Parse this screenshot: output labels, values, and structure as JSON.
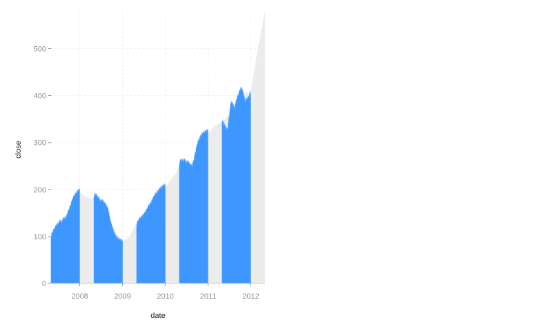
{
  "chart_data": {
    "type": "area",
    "xlabel": "date",
    "ylabel": "close",
    "x_range": [
      "2007-05-01",
      "2012-05-01"
    ],
    "ylim": [
      0,
      580
    ],
    "x_ticks": [
      "2008",
      "2009",
      "2010",
      "2011",
      "2012"
    ],
    "y_ticks": [
      0,
      100,
      200,
      300,
      400,
      500
    ],
    "grid": true,
    "colors": {
      "highlight": "#3d97fe",
      "background_area": "#ececec",
      "grid": "#eeeeee",
      "tick_text": "#8c8c8c"
    },
    "background_area": {
      "description": "full series, drawn in grey",
      "points": [
        [
          "2007-05-01",
          100
        ],
        [
          "2007-07-01",
          120
        ],
        [
          "2007-09-01",
          140
        ],
        [
          "2007-11-01",
          180
        ],
        [
          "2007-12-20",
          198
        ],
        [
          "2008-02-01",
          188
        ],
        [
          "2008-04-01",
          180
        ],
        [
          "2008-06-01",
          185
        ],
        [
          "2008-08-01",
          170
        ],
        [
          "2008-10-01",
          130
        ],
        [
          "2008-12-01",
          95
        ],
        [
          "2009-01-01",
          88
        ],
        [
          "2009-03-01",
          100
        ],
        [
          "2009-05-01",
          130
        ],
        [
          "2009-08-01",
          155
        ],
        [
          "2009-10-01",
          190
        ],
        [
          "2010-01-01",
          205
        ],
        [
          "2010-04-01",
          235
        ],
        [
          "2010-06-01",
          268
        ],
        [
          "2010-09-01",
          250
        ],
        [
          "2010-11-01",
          300
        ],
        [
          "2011-01-01",
          320
        ],
        [
          "2011-03-01",
          335
        ],
        [
          "2011-06-01",
          350
        ],
        [
          "2011-08-01",
          380
        ],
        [
          "2011-10-01",
          400
        ],
        [
          "2012-01-01",
          410
        ],
        [
          "2012-03-01",
          500
        ],
        [
          "2012-05-01",
          580
        ]
      ]
    },
    "series": [
      {
        "color": "#3d97fe",
        "segments": [
          {
            "start": "2007-05-01",
            "end": "2007-12-31",
            "points": [
              [
                "2007-05-01",
                100
              ],
              [
                "2007-05-15",
                108
              ],
              [
                "2007-06-01",
                115
              ],
              [
                "2007-06-15",
                122
              ],
              [
                "2007-07-01",
                125
              ],
              [
                "2007-07-15",
                132
              ],
              [
                "2007-08-01",
                128
              ],
              [
                "2007-08-15",
                138
              ],
              [
                "2007-09-01",
                135
              ],
              [
                "2007-09-15",
                145
              ],
              [
                "2007-10-01",
                155
              ],
              [
                "2007-10-15",
                165
              ],
              [
                "2007-11-01",
                178
              ],
              [
                "2007-11-15",
                185
              ],
              [
                "2007-12-01",
                190
              ],
              [
                "2007-12-15",
                195
              ],
              [
                "2007-12-31",
                198
              ]
            ]
          },
          {
            "start": "2008-05-01",
            "end": "2008-12-31",
            "points": [
              [
                "2008-05-01",
                185
              ],
              [
                "2008-05-15",
                188
              ],
              [
                "2008-06-01",
                183
              ],
              [
                "2008-06-15",
                178
              ],
              [
                "2008-07-01",
                172
              ],
              [
                "2008-07-15",
                175
              ],
              [
                "2008-08-01",
                168
              ],
              [
                "2008-08-15",
                165
              ],
              [
                "2008-09-01",
                155
              ],
              [
                "2008-09-15",
                135
              ],
              [
                "2008-10-01",
                120
              ],
              [
                "2008-10-15",
                110
              ],
              [
                "2008-11-01",
                100
              ],
              [
                "2008-11-15",
                95
              ],
              [
                "2008-12-01",
                92
              ],
              [
                "2008-12-15",
                90
              ],
              [
                "2008-12-31",
                88
              ]
            ]
          },
          {
            "start": "2009-05-01",
            "end": "2009-12-31",
            "points": [
              [
                "2009-05-01",
                125
              ],
              [
                "2009-05-15",
                132
              ],
              [
                "2009-06-01",
                138
              ],
              [
                "2009-06-15",
                140
              ],
              [
                "2009-07-01",
                145
              ],
              [
                "2009-07-15",
                150
              ],
              [
                "2009-08-01",
                158
              ],
              [
                "2009-08-15",
                165
              ],
              [
                "2009-09-01",
                170
              ],
              [
                "2009-09-15",
                178
              ],
              [
                "2009-10-01",
                185
              ],
              [
                "2009-10-15",
                190
              ],
              [
                "2009-11-01",
                195
              ],
              [
                "2009-11-15",
                200
              ],
              [
                "2009-12-01",
                203
              ],
              [
                "2009-12-15",
                206
              ],
              [
                "2009-12-31",
                208
              ]
            ]
          },
          {
            "start": "2010-05-01",
            "end": "2010-12-31",
            "points": [
              [
                "2010-05-01",
                255
              ],
              [
                "2010-05-15",
                262
              ],
              [
                "2010-06-01",
                258
              ],
              [
                "2010-06-15",
                262
              ],
              [
                "2010-07-01",
                255
              ],
              [
                "2010-07-15",
                258
              ],
              [
                "2010-08-01",
                250
              ],
              [
                "2010-08-15",
                248
              ],
              [
                "2010-09-01",
                260
              ],
              [
                "2010-09-15",
                278
              ],
              [
                "2010-10-01",
                295
              ],
              [
                "2010-10-15",
                305
              ],
              [
                "2010-11-01",
                312
              ],
              [
                "2010-11-15",
                318
              ],
              [
                "2010-12-01",
                320
              ],
              [
                "2010-12-15",
                322
              ],
              [
                "2010-12-31",
                324
              ]
            ]
          },
          {
            "start": "2011-05-01",
            "end": "2011-12-31",
            "points": [
              [
                "2011-05-01",
                345
              ],
              [
                "2011-05-15",
                338
              ],
              [
                "2011-06-01",
                330
              ],
              [
                "2011-06-15",
                325
              ],
              [
                "2011-07-01",
                355
              ],
              [
                "2011-07-15",
                385
              ],
              [
                "2011-08-01",
                380
              ],
              [
                "2011-08-15",
                370
              ],
              [
                "2011-09-01",
                390
              ],
              [
                "2011-09-15",
                400
              ],
              [
                "2011-10-01",
                410
              ],
              [
                "2011-10-15",
                415
              ],
              [
                "2011-11-01",
                400
              ],
              [
                "2011-11-15",
                385
              ],
              [
                "2011-12-01",
                392
              ],
              [
                "2011-12-15",
                395
              ],
              [
                "2011-12-31",
                405
              ]
            ]
          }
        ]
      }
    ]
  }
}
